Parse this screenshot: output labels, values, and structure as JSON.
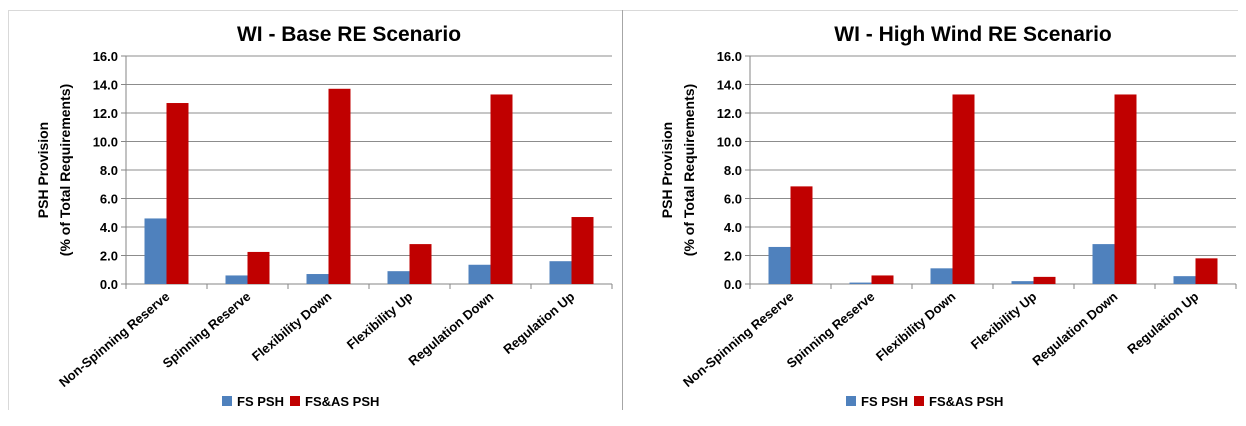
{
  "chart_data": [
    {
      "type": "bar",
      "title": "WI - Base RE Scenario",
      "ylabel_line1": "PSH Provision",
      "ylabel_line2": "(% of Total Requirements)",
      "ylim": [
        0,
        16
      ],
      "yticks": [
        "0.0",
        "2.0",
        "4.0",
        "6.0",
        "8.0",
        "10.0",
        "12.0",
        "14.0",
        "16.0"
      ],
      "grid": true,
      "legend_position": "bottom",
      "categories": [
        "Non-Spinning Reserve",
        "Spinning Reserve",
        "Flexibility Down",
        "Flexibility Up",
        "Regulation Down",
        "Regulation Up"
      ],
      "series": [
        {
          "name": "FS PSH",
          "color": "#4f81bd",
          "values": [
            4.6,
            0.6,
            0.7,
            0.9,
            1.35,
            1.6
          ]
        },
        {
          "name": "FS&AS PSH",
          "color": "#c00000",
          "values": [
            12.7,
            2.25,
            13.7,
            2.8,
            13.3,
            4.7
          ]
        }
      ]
    },
    {
      "type": "bar",
      "title": "WI - High Wind RE Scenario",
      "ylabel_line1": "PSH Provision",
      "ylabel_line2": "(% of Total Requirements)",
      "ylim": [
        0,
        16
      ],
      "yticks": [
        "0.0",
        "2.0",
        "4.0",
        "6.0",
        "8.0",
        "10.0",
        "12.0",
        "14.0",
        "16.0"
      ],
      "grid": true,
      "legend_position": "bottom",
      "categories": [
        "Non-Spinning Reserve",
        "Spinning Reserve",
        "Flexibility Down",
        "Flexibility Up",
        "Regulation Down",
        "Regulation Up"
      ],
      "series": [
        {
          "name": "FS PSH",
          "color": "#4f81bd",
          "values": [
            2.6,
            0.1,
            1.1,
            0.2,
            2.8,
            0.55
          ]
        },
        {
          "name": "FS&AS PSH",
          "color": "#c00000",
          "values": [
            6.85,
            0.6,
            13.3,
            0.5,
            13.3,
            1.8
          ]
        }
      ]
    }
  ]
}
